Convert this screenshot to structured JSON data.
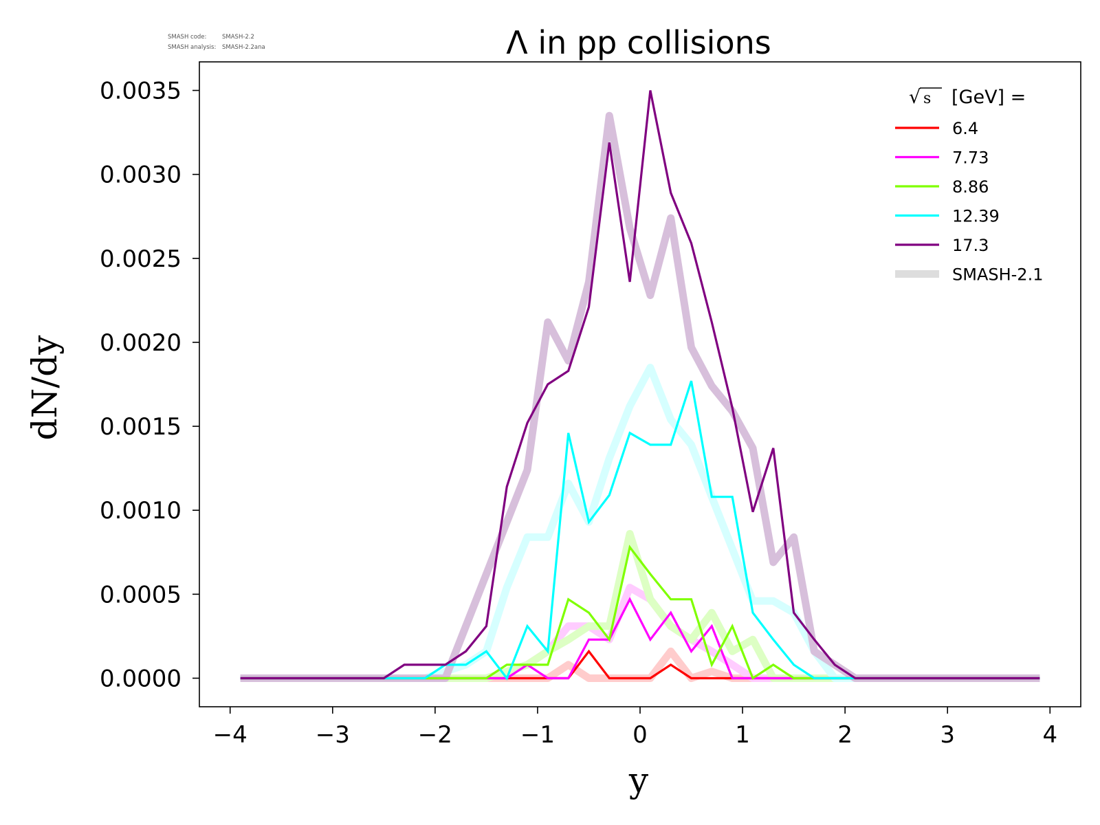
{
  "meta": {
    "code_label": "SMASH code:",
    "code_value": "SMASH-2.2",
    "analysis_label": "SMASH analysis:",
    "analysis_value": "SMASH-2.2ana"
  },
  "legend": {
    "title_sqrt_symbol": "√",
    "title_s": "s",
    "title_suffix": "[GeV] ="
  },
  "chart_data": {
    "type": "line",
    "title": "Λ in pp collisions",
    "xlabel": "y",
    "ylabel": "dN/dy",
    "xlim": [
      -4.3,
      4.3
    ],
    "ylim": [
      -0.00017,
      0.00367
    ],
    "xticks": [
      -4,
      -3,
      -2,
      -1,
      0,
      1,
      2,
      3,
      4
    ],
    "xtick_labels": [
      "−4",
      "−3",
      "−2",
      "−1",
      "0",
      "1",
      "2",
      "3",
      "4"
    ],
    "yticks": [
      0,
      0.0005,
      0.001,
      0.0015,
      0.002,
      0.0025,
      0.003,
      0.0035
    ],
    "ytick_labels": [
      "0.0000",
      "0.0005",
      "0.0010",
      "0.0015",
      "0.0020",
      "0.0025",
      "0.0030",
      "0.0035"
    ],
    "grid": false,
    "legend_position": "top-right",
    "x": [
      -3.9,
      -3.7,
      -3.5,
      -3.3,
      -3.1,
      -2.9,
      -2.7,
      -2.5,
      -2.3,
      -2.1,
      -1.9,
      -1.7,
      -1.5,
      -1.3,
      -1.1,
      -0.9,
      -0.7,
      -0.5,
      -0.3,
      -0.1,
      0.1,
      0.3,
      0.5,
      0.7,
      0.9,
      1.1,
      1.3,
      1.5,
      1.7,
      1.9,
      2.1,
      2.3,
      2.5,
      2.7,
      2.9,
      3.1,
      3.3,
      3.5,
      3.7,
      3.9
    ],
    "series": [
      {
        "name": "6.4",
        "color": "#ff0000",
        "values": [
          0,
          0,
          0,
          0,
          0,
          0,
          0,
          0,
          0,
          0,
          0,
          0,
          0,
          0,
          0,
          0,
          0,
          0.00016,
          0,
          0,
          0,
          8e-05,
          0,
          0,
          0,
          0,
          0,
          0,
          0,
          0,
          0,
          0,
          0,
          0,
          0,
          0,
          0,
          0,
          0,
          0
        ]
      },
      {
        "name": "7.73",
        "color": "#ff00ff",
        "values": [
          0,
          0,
          0,
          0,
          0,
          0,
          0,
          0,
          0,
          0,
          0,
          0,
          0,
          0,
          8e-05,
          0,
          0,
          0.00023,
          0.00023,
          0.00047,
          0.00023,
          0.00039,
          0.00016,
          0.00031,
          0,
          0,
          0,
          0,
          0,
          0,
          0,
          0,
          0,
          0,
          0,
          0,
          0,
          0,
          0,
          0
        ]
      },
      {
        "name": "8.86",
        "color": "#7fff00",
        "values": [
          0,
          0,
          0,
          0,
          0,
          0,
          0,
          0,
          0,
          0,
          0,
          0,
          0,
          8e-05,
          8e-05,
          8e-05,
          0.00047,
          0.00039,
          0.00023,
          0.00078,
          0.00062,
          0.00047,
          0.00047,
          8e-05,
          0.00031,
          0,
          8e-05,
          0,
          0,
          0,
          0,
          0,
          0,
          0,
          0,
          0,
          0,
          0,
          0,
          0
        ]
      },
      {
        "name": "12.39",
        "color": "#00ffff",
        "values": [
          0,
          0,
          0,
          0,
          0,
          0,
          0,
          0,
          0,
          0,
          8e-05,
          8e-05,
          0.00016,
          0,
          0.00031,
          0.00016,
          0.00146,
          0.00093,
          0.00109,
          0.00146,
          0.00139,
          0.00139,
          0.00177,
          0.00108,
          0.00108,
          0.00039,
          0.00023,
          8e-05,
          0,
          0,
          0,
          0,
          0,
          0,
          0,
          0,
          0,
          0,
          0,
          0
        ]
      },
      {
        "name": "17.3",
        "color": "#800080",
        "values": [
          0,
          0,
          0,
          0,
          0,
          0,
          0,
          0,
          8e-05,
          8e-05,
          8e-05,
          0.00016,
          0.00031,
          0.00114,
          0.00152,
          0.00175,
          0.00183,
          0.00221,
          0.00319,
          0.00236,
          0.0035,
          0.00289,
          0.00259,
          0.00212,
          0.00161,
          0.00099,
          0.00137,
          0.00039,
          0.00023,
          8e-05,
          0,
          0,
          0,
          0,
          0,
          0,
          0,
          0,
          0,
          0
        ]
      }
    ],
    "reference_series": {
      "name": "SMASH-2.1",
      "legend_color": "#dddddd",
      "curves": [
        {
          "of": "6.4",
          "color": "#ffcccc",
          "values": [
            0,
            0,
            0,
            0,
            0,
            0,
            0,
            0,
            0,
            0,
            0,
            0,
            0,
            0,
            0,
            0,
            8e-05,
            0,
            0,
            0,
            0,
            0.00016,
            0,
            4e-05,
            0,
            0,
            0,
            0,
            0,
            0,
            0,
            0,
            0,
            0,
            0,
            0,
            0,
            0,
            0,
            0
          ]
        },
        {
          "of": "7.73",
          "color": "#ffccff",
          "values": [
            0,
            0,
            0,
            0,
            0,
            0,
            0,
            0,
            0,
            0,
            0,
            0,
            0,
            4e-05,
            8e-05,
            0.00016,
            0.00031,
            0.00031,
            0.00023,
            0.00054,
            0.00047,
            0.00031,
            0.00023,
            0.00016,
            8e-05,
            0,
            0,
            0,
            0,
            0,
            0,
            0,
            0,
            0,
            0,
            0,
            0,
            0,
            0,
            0
          ]
        },
        {
          "of": "8.86",
          "color": "#ddffc4",
          "values": [
            0,
            0,
            0,
            0,
            0,
            0,
            0,
            0,
            0,
            0,
            0,
            0,
            0,
            4e-05,
            8e-05,
            0.00016,
            0.00023,
            0.00031,
            0.00031,
            0.00086,
            0.00047,
            0.00031,
            0.00023,
            0.00039,
            0.00016,
            0.00023,
            0,
            0,
            0,
            0,
            0,
            0,
            0,
            0,
            0,
            0,
            0,
            0,
            0,
            0
          ]
        },
        {
          "of": "12.39",
          "color": "#d6ffff",
          "values": [
            0,
            0,
            0,
            0,
            0,
            0,
            0,
            0,
            0,
            0,
            4e-05,
            8e-05,
            0.00016,
            0.00054,
            0.00084,
            0.00084,
            0.00116,
            0.00093,
            0.00131,
            0.00162,
            0.00185,
            0.00154,
            0.00139,
            0.00108,
            0.00077,
            0.00046,
            0.00046,
            0.00039,
            0.00016,
            0,
            0,
            0,
            0,
            0,
            0,
            0,
            0,
            0,
            0,
            0
          ]
        },
        {
          "of": "17.3",
          "color": "#d7bfdb",
          "values": [
            0,
            0,
            0,
            0,
            0,
            0,
            0,
            0,
            0,
            0,
            0,
            0.00031,
            0.00062,
            0.00093,
            0.00124,
            0.00212,
            0.00189,
            0.00236,
            0.00335,
            0.00268,
            0.00228,
            0.00274,
            0.00197,
            0.00174,
            0.00159,
            0.00137,
            0.00069,
            0.00084,
            0.00016,
            8e-05,
            0,
            0,
            0,
            0,
            0,
            0,
            0,
            0,
            0,
            0
          ]
        }
      ]
    }
  }
}
